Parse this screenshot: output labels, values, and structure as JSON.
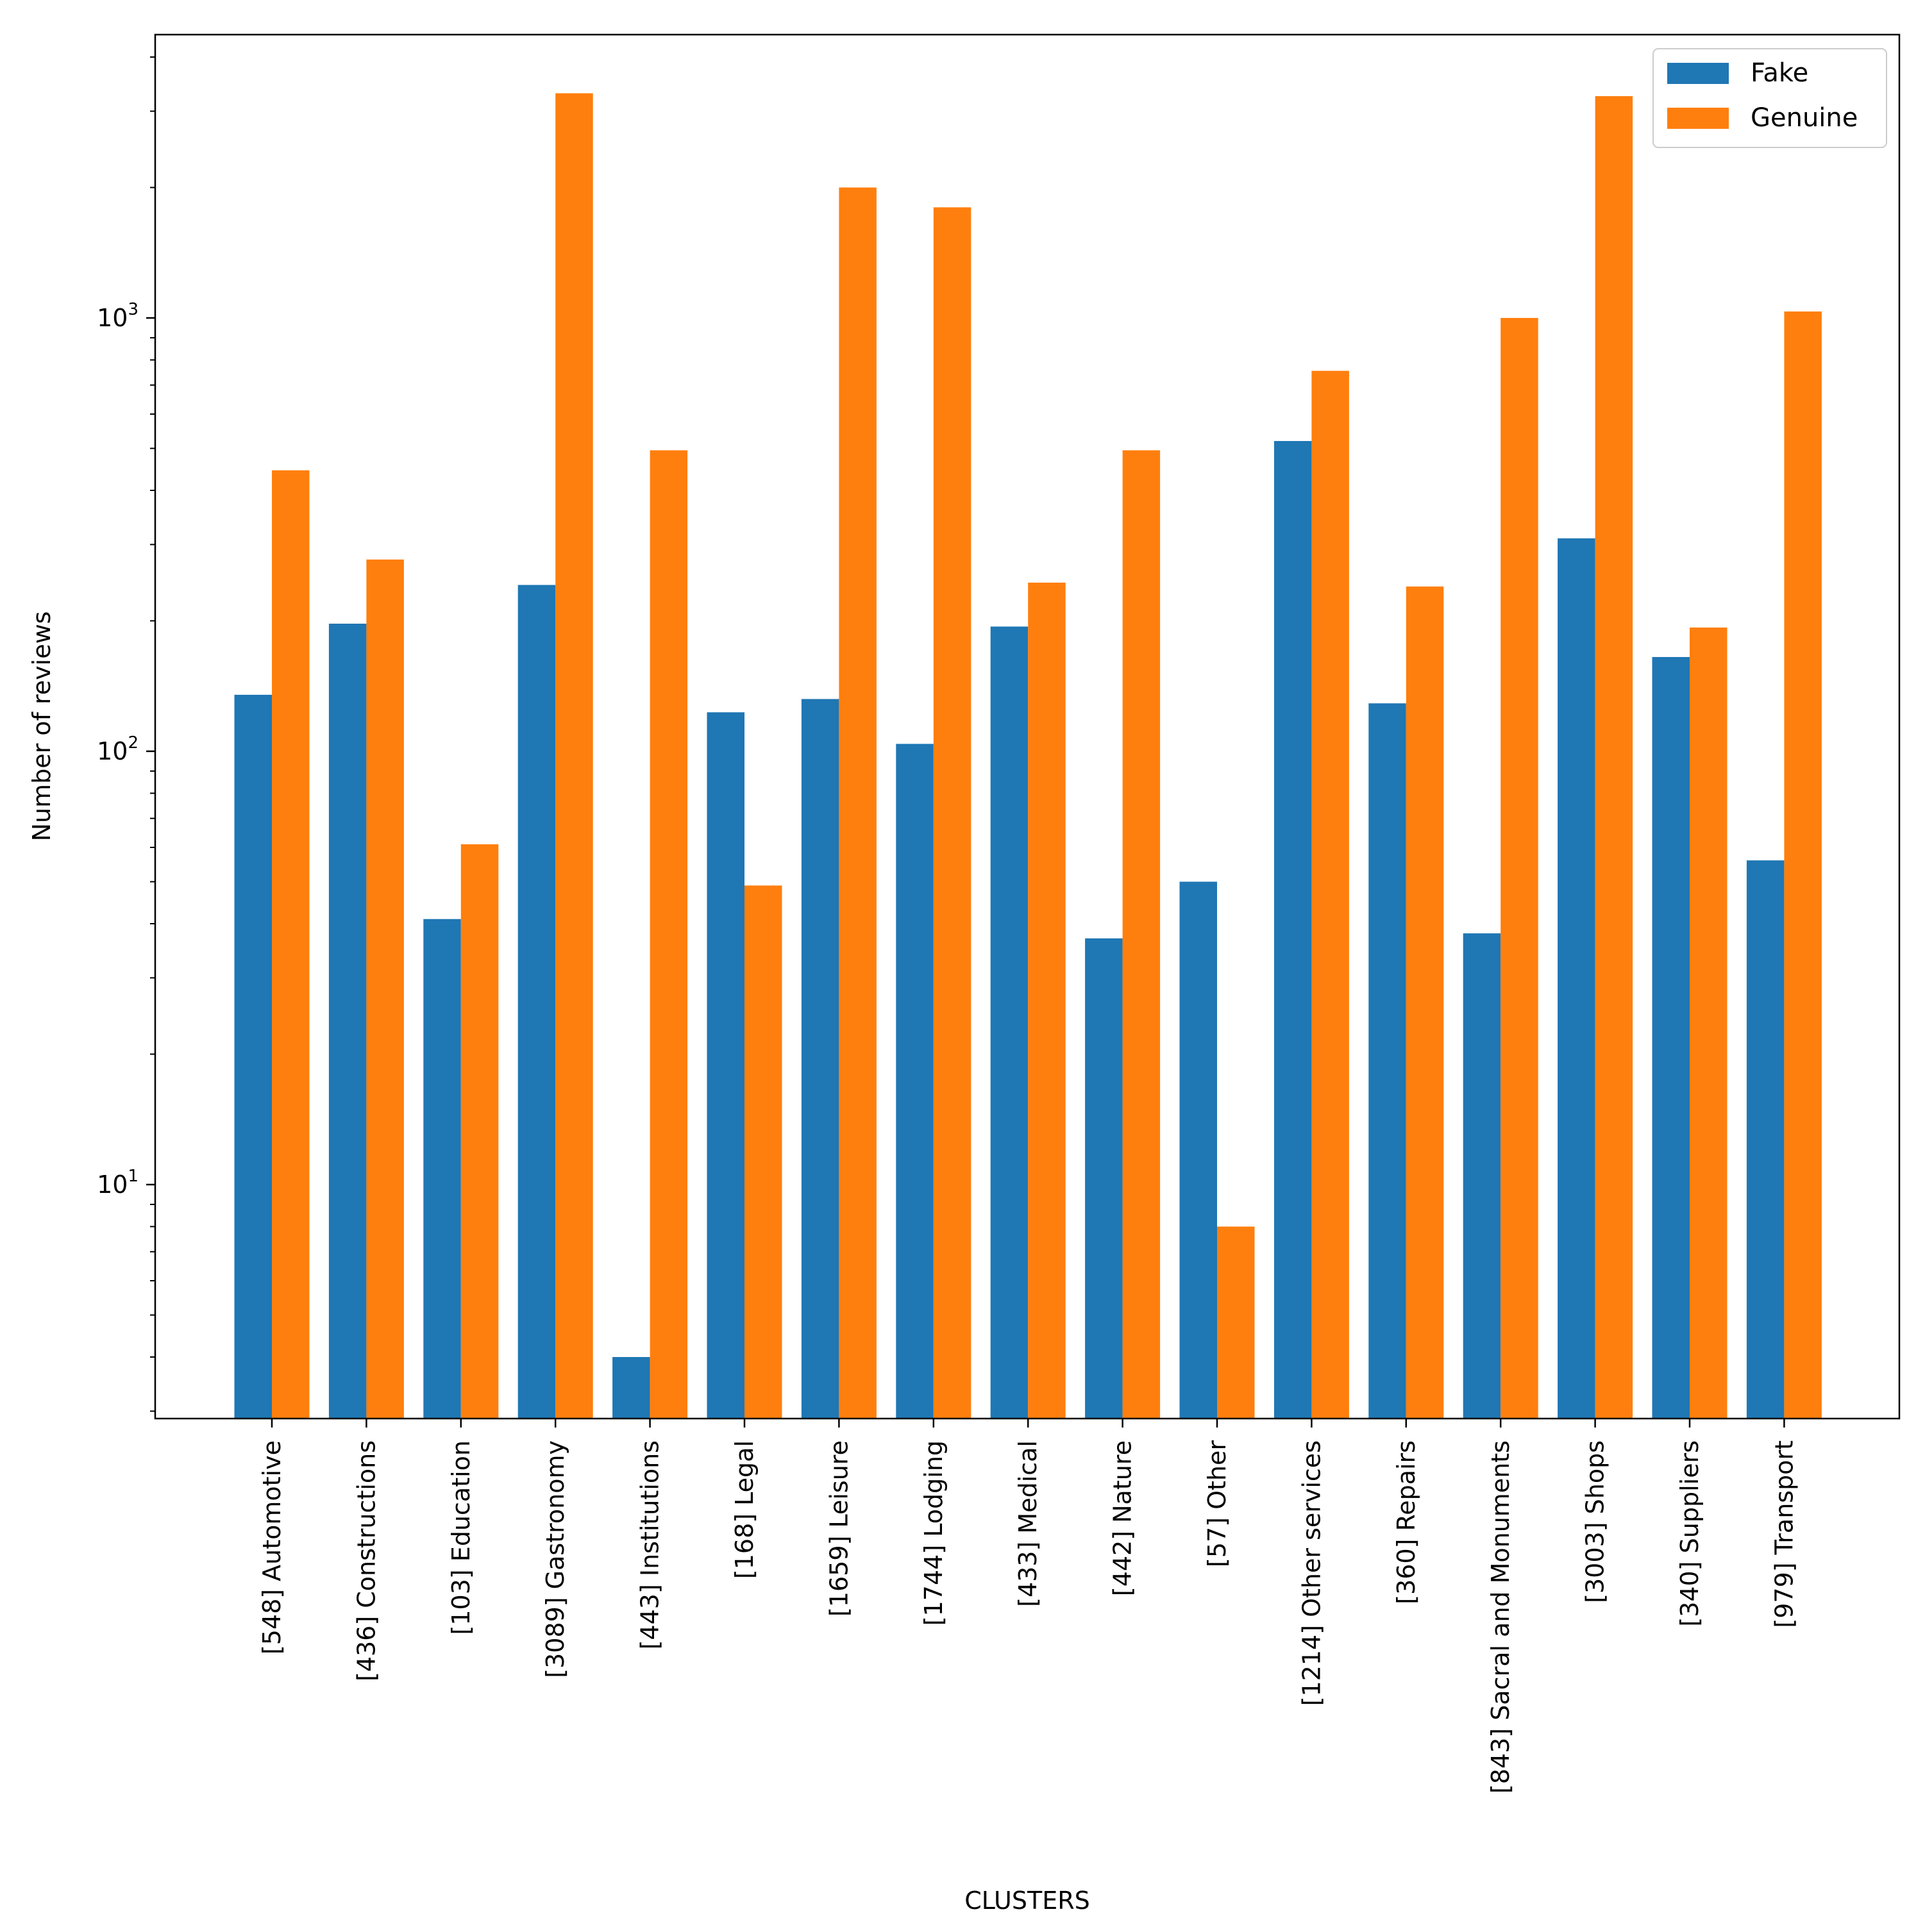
{
  "chart_data": {
    "type": "bar",
    "scale": "log",
    "xlabel": "CLUSTERS",
    "ylabel": "Number of reviews",
    "ylim": [
      3,
      5000
    ],
    "y_ticks": [
      {
        "value": 10,
        "base": "10",
        "exp": "1"
      },
      {
        "value": 100,
        "base": "10",
        "exp": "2"
      },
      {
        "value": 1000,
        "base": "10",
        "exp": "3"
      }
    ],
    "categories": [
      "[548] Automotive",
      "[436] Constructions",
      "[103] Education",
      "[3089] Gastronomy",
      "[443] Institutions",
      "[168] Legal",
      "[1659] Leisure",
      "[1744] Lodging",
      "[433] Medical",
      "[442] Nature",
      "[57] Other",
      "[1214] Other services",
      "[360] Repairs",
      "[843] Sacral and Monuments",
      "[3003] Shops",
      "[340] Suppliers",
      "[979] Transport"
    ],
    "series": [
      {
        "name": "Fake",
        "color": "#1f77b4",
        "values": [
          135,
          197,
          41,
          242,
          4,
          123,
          132,
          104,
          194,
          37,
          50,
          520,
          129,
          38,
          310,
          165,
          56
        ]
      },
      {
        "name": "Genuine",
        "color": "#ff7f0e",
        "values": [
          445,
          277,
          61,
          3300,
          495,
          49,
          2000,
          1800,
          245,
          495,
          8,
          755,
          240,
          1000,
          3250,
          193,
          1035
        ]
      }
    ],
    "legend": {
      "position": "top-right"
    }
  }
}
